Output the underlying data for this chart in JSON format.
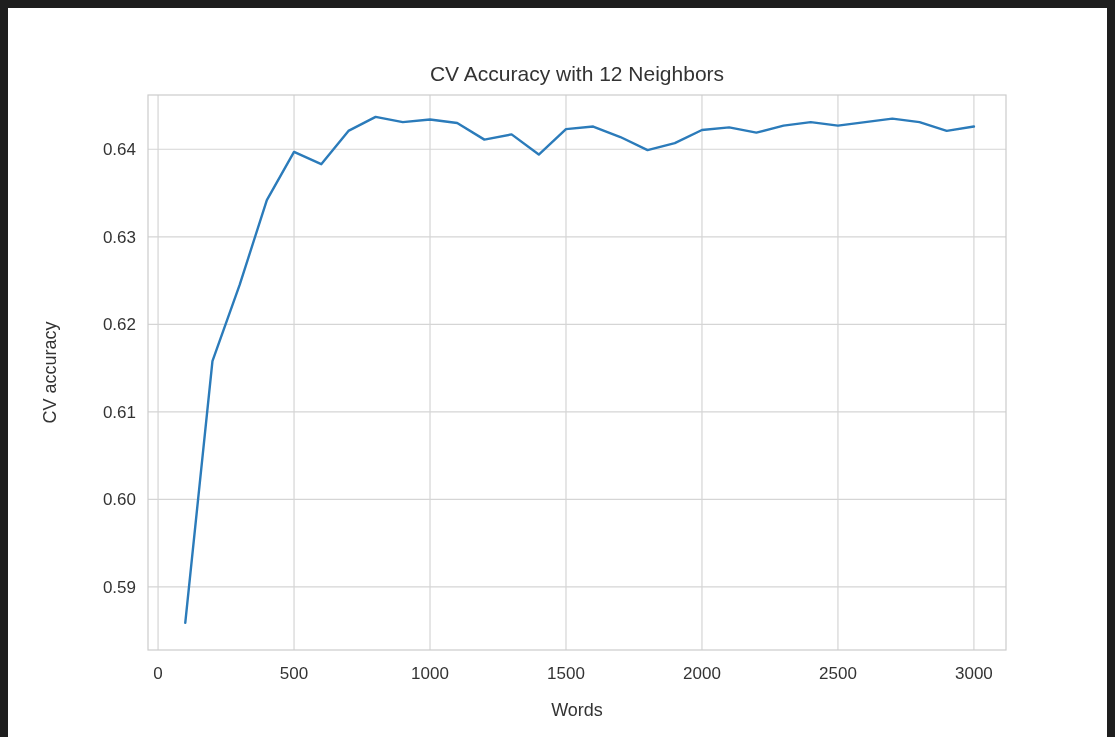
{
  "chart_data": {
    "type": "line",
    "title": "CV Accuracy with 12 Neighbors",
    "xlabel": "Words",
    "ylabel": "CV accuracy",
    "x": [
      100,
      200,
      300,
      400,
      500,
      600,
      700,
      800,
      900,
      1000,
      1100,
      1200,
      1300,
      1400,
      1500,
      1600,
      1700,
      1800,
      1900,
      2000,
      2100,
      2200,
      2300,
      2400,
      2500,
      2600,
      2700,
      2800,
      2900,
      3000
    ],
    "series": [
      {
        "color": "#2b7bba",
        "values": [
          0.5859,
          0.6158,
          0.6245,
          0.6342,
          0.6397,
          0.6383,
          0.6421,
          0.6437,
          0.6431,
          0.6434,
          0.643,
          0.6411,
          0.6417,
          0.6394,
          0.6423,
          0.6426,
          0.6414,
          0.6399,
          0.6407,
          0.6422,
          0.6425,
          0.6419,
          0.6427,
          0.6431,
          0.6427,
          0.6431,
          0.6435,
          0.6431,
          0.6421,
          0.6426
        ]
      }
    ],
    "xlim": [
      -37,
      3118
    ],
    "ylim": [
      0.5828,
      0.6462
    ],
    "xticks": [
      0,
      500,
      1000,
      1500,
      2000,
      2500,
      3000
    ],
    "yticks": [
      0.59,
      {
        "value": 0.6,
        "label": "0.60"
      },
      0.61,
      0.62,
      0.63,
      0.64
    ],
    "grid": true
  }
}
